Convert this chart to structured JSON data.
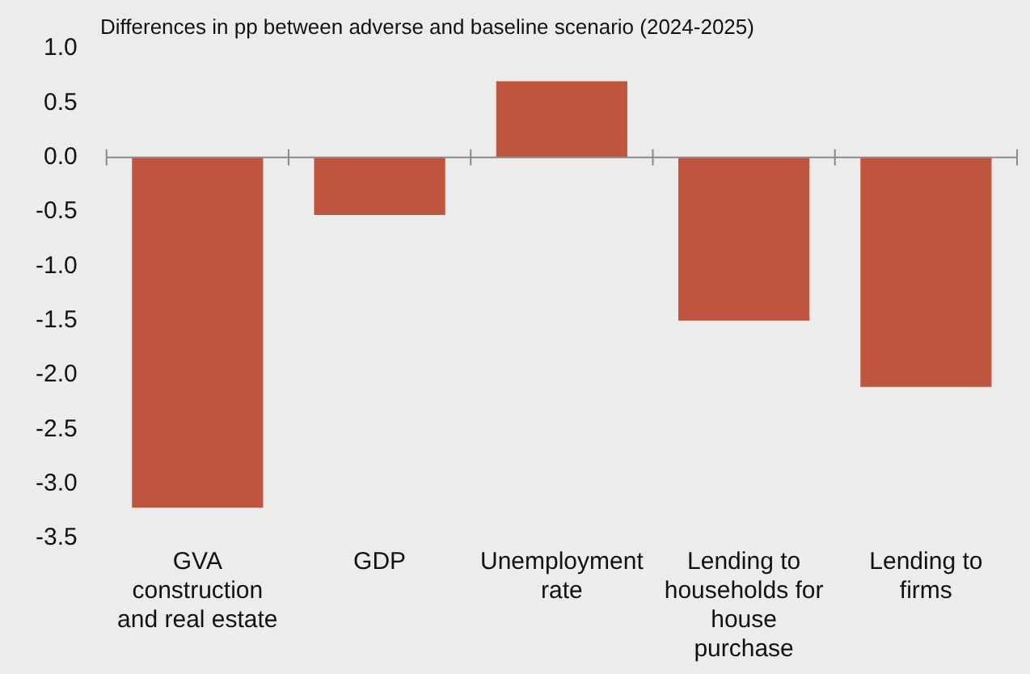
{
  "chart_data": {
    "type": "bar",
    "title": "Differences in pp between adverse and baseline scenario (2024-2025)",
    "categories": [
      "GVA construction and real estate",
      "GDP",
      "Unemployment rate",
      "Lending to households for house purchase",
      "Lending to firms"
    ],
    "values": [
      -3.22,
      -0.53,
      0.7,
      -1.5,
      -2.11
    ],
    "color": "#c0553f",
    "ylim": [
      -3.5,
      1.0
    ],
    "yticks": [
      {
        "value": -3.5,
        "label": "-3.5"
      },
      {
        "value": -3.0,
        "label": "-3.0"
      },
      {
        "value": -2.5,
        "label": "-2.5"
      },
      {
        "value": -2.0,
        "label": "-2.0"
      },
      {
        "value": -1.5,
        "label": "-1.5"
      },
      {
        "value": -1.0,
        "label": "-1.0"
      },
      {
        "value": -0.5,
        "label": "-0.5"
      },
      {
        "value": 0,
        "label": "0.0"
      },
      {
        "value": 0.5,
        "label": "0.5"
      },
      {
        "value": 1.0,
        "label": "1.0"
      }
    ],
    "ref_lines": [
      {
        "axis": "y",
        "value": 0,
        "color": "#8a8a8a"
      }
    ],
    "grid": false,
    "legend": false
  }
}
